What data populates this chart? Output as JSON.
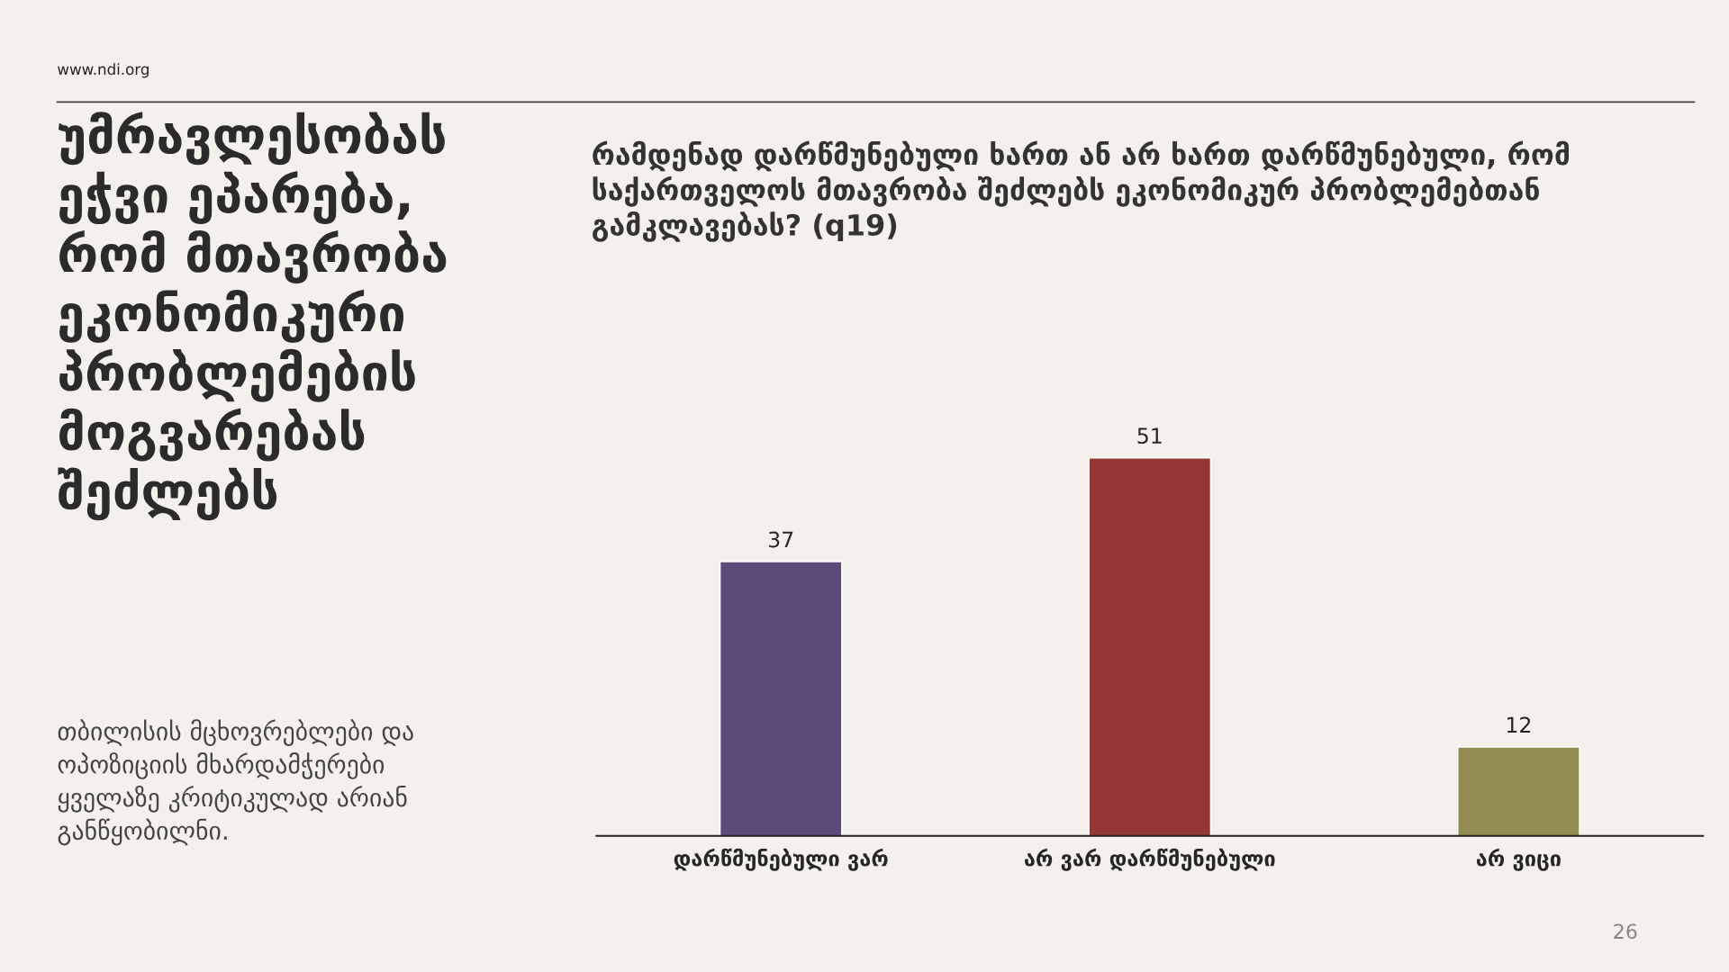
{
  "chart_data": {
    "type": "bar",
    "title": "რამდენად დარწმუნებული ხართ ან არ ხართ დარწმუნებული, რომ\nსაქართველოს მთავრობა შეძლებს ეკონომიკურ პრობლემებთან\nგამკლავებას? (q19)",
    "categories": [
      "დარწმუნებული ვარ",
      "არ ვარ დარწმუნებული",
      "არ ვიცი"
    ],
    "values": [
      37,
      51,
      12
    ],
    "colors": [
      "#5e4a7a",
      "#943634",
      "#938c52"
    ],
    "data_labels": true,
    "tick_labels": "x",
    "annotations": [
      "უმრავლესობას\nეჭვი ეპარება,\nრომ მთავრობა\nეკონომიკური\nპრობლემების\nმოგვარებას\nშეძლებს",
      "თბილისის მცხოვრებლები და\nოპოზიციის მხარდამჭერები\nყველაზე კრიტიკულად არიან\nგანწყობილნი.",
      "www.ndi.org",
      "26"
    ]
  }
}
